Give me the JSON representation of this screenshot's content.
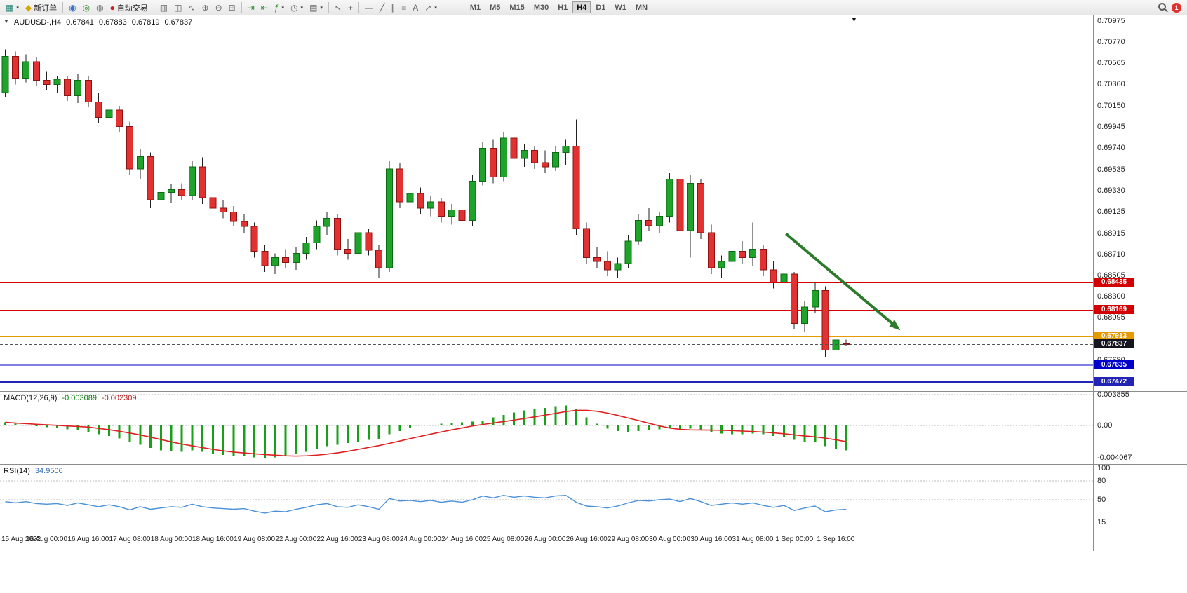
{
  "icons": {
    "caret": "▾",
    "header_caret": "▼",
    "shift_marker": "▼",
    "new_chart": "▦",
    "new_order": "◆",
    "profile": "◉",
    "market": "◎",
    "signals": "◍",
    "auto_trading": "●",
    "chart_bars": "▥",
    "chart_candles": "◫",
    "chart_line": "∿",
    "zoom_in": "⊕",
    "zoom_out": "⊖",
    "tile_windows": "⊞",
    "auto_scroll": "⇥",
    "chart_shift": "⇤",
    "indicators": "ƒ",
    "periods": "◷",
    "templates": "▤",
    "cursor": "↖",
    "crosshair": "+",
    "hline": "—",
    "trendline": "╱",
    "channel": "∥",
    "fibonacci": "≡",
    "text_tool": "A",
    "arrows_tool": "↗"
  },
  "toolbar": {
    "new_order_label": "新订单",
    "auto_trading_label": "自动交易",
    "timeframes": [
      "M1",
      "M5",
      "M15",
      "M30",
      "H1",
      "H4",
      "D1",
      "W1",
      "MN"
    ],
    "active_timeframe": "H4",
    "notification_badge": "1"
  },
  "chart": {
    "header": {
      "symbol": "AUDUSD-,H4",
      "open": "0.67841",
      "high": "0.67883",
      "low": "0.67819",
      "close": "0.67837"
    },
    "price_scale": {
      "max": 0.71029,
      "min": 0.67383,
      "ticks": [
        "0.70975",
        "0.70770",
        "0.70565",
        "0.70360",
        "0.70150",
        "0.69945",
        "0.69740",
        "0.69535",
        "0.69330",
        "0.69125",
        "0.68915",
        "0.68710",
        "0.68505",
        "0.68300",
        "0.68095",
        "0.67890",
        "0.67680",
        "0.67475"
      ]
    },
    "levels": [
      {
        "name": "resistance-line-1",
        "value": 0.68435,
        "label": "0.68435",
        "color": "#d20000",
        "thickness": 1
      },
      {
        "name": "resistance-line-2",
        "value": 0.68169,
        "label": "0.68169",
        "color": "#d20000",
        "thickness": 1
      },
      {
        "name": "support-line-orange",
        "value": 0.67913,
        "label": "0.67913",
        "color": "#e59a00",
        "thickness": 2
      },
      {
        "name": "support-line-blue-1",
        "value": 0.67635,
        "label": "0.67635",
        "color": "#0000cc",
        "thickness": 1
      },
      {
        "name": "support-line-blue-2",
        "value": 0.67472,
        "label": "0.67472",
        "color": "#2424b4",
        "thickness": 4
      }
    ],
    "current_price": {
      "value": 0.67837,
      "label": "0.67837",
      "color": "#15151f"
    },
    "annotation_arrow": {
      "x1_bar": 75.2,
      "y1_price": 0.6891,
      "x2_bar": 85.9,
      "y2_price": 0.68,
      "color": "#2c7a2c"
    }
  },
  "chart_data": {
    "type": "candlestick",
    "symbol": "AUDUSD",
    "timeframe": "H4",
    "candles": [
      [
        0.7028,
        0.707,
        0.7024,
        0.7063
      ],
      [
        0.7063,
        0.7068,
        0.7036,
        0.7042
      ],
      [
        0.7042,
        0.7065,
        0.7038,
        0.7058
      ],
      [
        0.7058,
        0.7062,
        0.7035,
        0.704
      ],
      [
        0.704,
        0.7048,
        0.703,
        0.7036
      ],
      [
        0.7036,
        0.7044,
        0.7028,
        0.7041
      ],
      [
        0.7041,
        0.7044,
        0.702,
        0.7025
      ],
      [
        0.7025,
        0.7046,
        0.7018,
        0.704
      ],
      [
        0.704,
        0.7044,
        0.7014,
        0.7019
      ],
      [
        0.7019,
        0.7028,
        0.6998,
        0.7004
      ],
      [
        0.7004,
        0.7017,
        0.6998,
        0.7011
      ],
      [
        0.7011,
        0.7015,
        0.699,
        0.6995
      ],
      [
        0.6995,
        0.7,
        0.6948,
        0.6954
      ],
      [
        0.6954,
        0.6973,
        0.6944,
        0.6966
      ],
      [
        0.6966,
        0.697,
        0.6916,
        0.6924
      ],
      [
        0.6924,
        0.6937,
        0.6914,
        0.6931
      ],
      [
        0.6931,
        0.6939,
        0.6921,
        0.6934
      ],
      [
        0.6934,
        0.694,
        0.6924,
        0.6928
      ],
      [
        0.6928,
        0.6962,
        0.6924,
        0.6956
      ],
      [
        0.6956,
        0.6965,
        0.692,
        0.6926
      ],
      [
        0.6926,
        0.6934,
        0.691,
        0.6916
      ],
      [
        0.6916,
        0.6924,
        0.6906,
        0.6912
      ],
      [
        0.6912,
        0.6918,
        0.6898,
        0.6903
      ],
      [
        0.6903,
        0.691,
        0.6892,
        0.6898
      ],
      [
        0.6898,
        0.6902,
        0.6868,
        0.6874
      ],
      [
        0.6874,
        0.688,
        0.6854,
        0.686
      ],
      [
        0.686,
        0.6872,
        0.6852,
        0.6868
      ],
      [
        0.6868,
        0.6876,
        0.6858,
        0.6863
      ],
      [
        0.6863,
        0.6878,
        0.6856,
        0.6872
      ],
      [
        0.6872,
        0.6888,
        0.6866,
        0.6882
      ],
      [
        0.6882,
        0.6904,
        0.6876,
        0.6898
      ],
      [
        0.6898,
        0.6912,
        0.689,
        0.6906
      ],
      [
        0.6906,
        0.691,
        0.687,
        0.6876
      ],
      [
        0.6876,
        0.6886,
        0.6866,
        0.6872
      ],
      [
        0.6872,
        0.6898,
        0.6868,
        0.6892
      ],
      [
        0.6892,
        0.6896,
        0.687,
        0.6875
      ],
      [
        0.6875,
        0.688,
        0.6848,
        0.6858
      ],
      [
        0.6858,
        0.6962,
        0.6854,
        0.6954
      ],
      [
        0.6954,
        0.696,
        0.6916,
        0.6922
      ],
      [
        0.6922,
        0.6934,
        0.6916,
        0.693
      ],
      [
        0.693,
        0.6936,
        0.691,
        0.6916
      ],
      [
        0.6916,
        0.6928,
        0.6908,
        0.6922
      ],
      [
        0.6922,
        0.6926,
        0.6902,
        0.6908
      ],
      [
        0.6908,
        0.692,
        0.69,
        0.6914
      ],
      [
        0.6914,
        0.6918,
        0.6898,
        0.6904
      ],
      [
        0.6904,
        0.6948,
        0.6898,
        0.6942
      ],
      [
        0.6942,
        0.698,
        0.6938,
        0.6974
      ],
      [
        0.6974,
        0.6982,
        0.694,
        0.6946
      ],
      [
        0.6946,
        0.699,
        0.6942,
        0.6984
      ],
      [
        0.6984,
        0.6988,
        0.6958,
        0.6964
      ],
      [
        0.6964,
        0.6978,
        0.6956,
        0.6972
      ],
      [
        0.6972,
        0.6976,
        0.6954,
        0.696
      ],
      [
        0.696,
        0.6972,
        0.695,
        0.6956
      ],
      [
        0.6956,
        0.6976,
        0.6952,
        0.697
      ],
      [
        0.697,
        0.6982,
        0.6958,
        0.6976
      ],
      [
        0.6976,
        0.7002,
        0.689,
        0.6896
      ],
      [
        0.6896,
        0.6902,
        0.6862,
        0.6868
      ],
      [
        0.6868,
        0.6878,
        0.6858,
        0.6864
      ],
      [
        0.6864,
        0.6874,
        0.685,
        0.6856
      ],
      [
        0.6856,
        0.6868,
        0.6848,
        0.6862
      ],
      [
        0.6862,
        0.689,
        0.6858,
        0.6884
      ],
      [
        0.6884,
        0.691,
        0.688,
        0.6904
      ],
      [
        0.6904,
        0.6916,
        0.6894,
        0.6899
      ],
      [
        0.6899,
        0.6912,
        0.6892,
        0.6908
      ],
      [
        0.6908,
        0.695,
        0.6902,
        0.6944
      ],
      [
        0.6944,
        0.695,
        0.6888,
        0.6894
      ],
      [
        0.6894,
        0.6948,
        0.6868,
        0.694
      ],
      [
        0.694,
        0.6944,
        0.6886,
        0.6892
      ],
      [
        0.6892,
        0.69,
        0.6852,
        0.6858
      ],
      [
        0.6858,
        0.687,
        0.6848,
        0.6864
      ],
      [
        0.6864,
        0.688,
        0.6856,
        0.6874
      ],
      [
        0.6874,
        0.6884,
        0.6862,
        0.6868
      ],
      [
        0.6868,
        0.6902,
        0.686,
        0.6876
      ],
      [
        0.6876,
        0.688,
        0.685,
        0.6856
      ],
      [
        0.6856,
        0.6864,
        0.6838,
        0.6844
      ],
      [
        0.6844,
        0.6856,
        0.6834,
        0.6852
      ],
      [
        0.6852,
        0.6854,
        0.6798,
        0.6804
      ],
      [
        0.6804,
        0.6826,
        0.6796,
        0.682
      ],
      [
        0.682,
        0.6844,
        0.6814,
        0.6836
      ],
      [
        0.6836,
        0.684,
        0.6771,
        0.6778
      ],
      [
        0.6778,
        0.6794,
        0.677,
        0.6788
      ],
      [
        0.67841,
        0.67883,
        0.67819,
        0.67837
      ]
    ],
    "time_labels": [
      {
        "label": "15 Aug 2022",
        "bar": 0
      },
      {
        "label": "16 Aug 00:00",
        "bar": 4
      },
      {
        "label": "16 Aug 16:00",
        "bar": 8
      },
      {
        "label": "17 Aug 08:00",
        "bar": 12
      },
      {
        "label": "18 Aug 00:00",
        "bar": 16
      },
      {
        "label": "18 Aug 16:00",
        "bar": 20
      },
      {
        "label": "19 Aug 08:00",
        "bar": 24
      },
      {
        "label": "22 Aug 00:00",
        "bar": 28
      },
      {
        "label": "22 Aug 16:00",
        "bar": 32
      },
      {
        "label": "23 Aug 08:00",
        "bar": 36
      },
      {
        "label": "24 Aug 00:00",
        "bar": 40
      },
      {
        "label": "24 Aug 16:00",
        "bar": 44
      },
      {
        "label": "25 Aug 08:00",
        "bar": 48
      },
      {
        "label": "26 Aug 00:00",
        "bar": 52
      },
      {
        "label": "26 Aug 16:00",
        "bar": 56
      },
      {
        "label": "29 Aug 08:00",
        "bar": 60
      },
      {
        "label": "30 Aug 00:00",
        "bar": 64
      },
      {
        "label": "30 Aug 16:00",
        "bar": 68
      },
      {
        "label": "31 Aug 08:00",
        "bar": 72
      },
      {
        "label": "1 Sep 00:00",
        "bar": 76
      },
      {
        "label": "1 Sep 16:00",
        "bar": 80
      }
    ],
    "macd": {
      "label": "MACD(12,26,9)",
      "main_value": "-0.003089",
      "signal_value": "-0.002309",
      "scale": [
        "0.003855",
        "0.00",
        "-0.004067"
      ],
      "grid": [
        0.003855,
        0,
        -0.004067
      ],
      "histogram": [
        0.0004,
        0.0002,
        0.0001,
        -0.0001,
        -0.0002,
        -0.0003,
        -0.0005,
        -0.0006,
        -0.0008,
        -0.0011,
        -0.0013,
        -0.0016,
        -0.0021,
        -0.0024,
        -0.0028,
        -0.0031,
        -0.0032,
        -0.0033,
        -0.0031,
        -0.0033,
        -0.0036,
        -0.0037,
        -0.0038,
        -0.0038,
        -0.004,
        -0.0041,
        -0.004,
        -0.0038,
        -0.0036,
        -0.0033,
        -0.003,
        -0.0026,
        -0.0024,
        -0.0022,
        -0.002,
        -0.0018,
        -0.0017,
        -0.0011,
        -0.0007,
        -0.0003,
        0.0,
        0.0001,
        0.0002,
        0.0003,
        0.0004,
        0.0005,
        0.0006,
        0.001,
        0.0013,
        0.0016,
        0.0019,
        0.0021,
        0.0022,
        0.0024,
        0.0025,
        0.002,
        0.001,
        0.0002,
        -0.0004,
        -0.0007,
        -0.0008,
        -0.0007,
        -0.0006,
        -0.0005,
        -0.0004,
        -0.0005,
        -0.0004,
        -0.0005,
        -0.0008,
        -0.001,
        -0.0011,
        -0.0011,
        -0.001,
        -0.0011,
        -0.0013,
        -0.0014,
        -0.0018,
        -0.002,
        -0.002,
        -0.0026,
        -0.0029,
        -0.0031
      ]
    },
    "rsi": {
      "label": "RSI(14)",
      "value": "34.9506",
      "ticks": [
        100,
        80,
        50,
        15
      ],
      "levels": [
        80,
        50,
        15
      ],
      "values": [
        47,
        45,
        47,
        44,
        43,
        44,
        41,
        45,
        42,
        39,
        42,
        39,
        34,
        39,
        35,
        37,
        39,
        38,
        43,
        39,
        37,
        36,
        35,
        36,
        32,
        29,
        32,
        31,
        35,
        38,
        42,
        44,
        39,
        38,
        42,
        39,
        35,
        52,
        48,
        49,
        47,
        49,
        46,
        48,
        46,
        50,
        56,
        53,
        57,
        54,
        56,
        54,
        53,
        56,
        57,
        46,
        40,
        39,
        37,
        40,
        45,
        49,
        48,
        50,
        51,
        47,
        52,
        47,
        41,
        43,
        45,
        43,
        45,
        41,
        38,
        41,
        33,
        37,
        40,
        31,
        34,
        34.95
      ]
    }
  }
}
